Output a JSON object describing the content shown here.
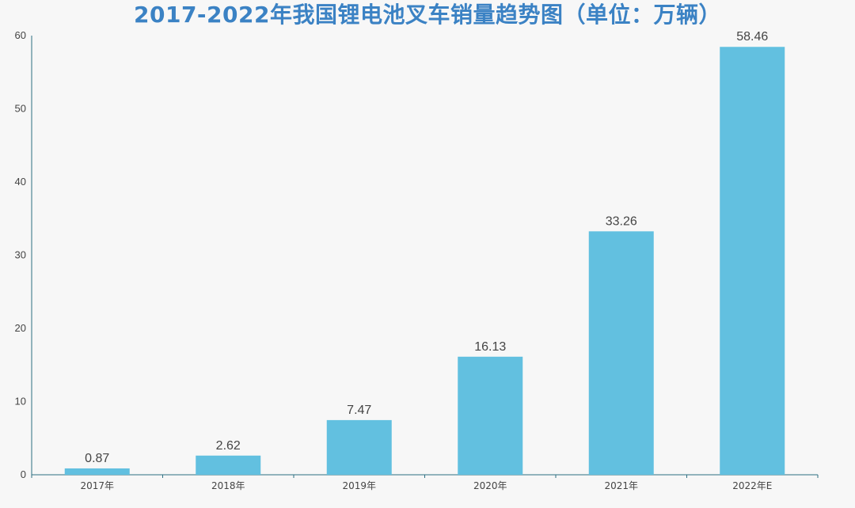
{
  "colors": {
    "bar": "#62c0e0",
    "axis": "#2e6f82",
    "title": "#3b82c4",
    "text": "#444444",
    "background": "#f7f7f7"
  },
  "chart_data": {
    "type": "bar",
    "title": "2017-2022年我国锂电池叉车销量趋势图（单位：万辆）",
    "xlabel": "",
    "ylabel": "",
    "categories": [
      "2017年",
      "2018年",
      "2019年",
      "2020年",
      "2021年",
      "2022年E"
    ],
    "values": [
      0.87,
      2.62,
      7.47,
      16.13,
      33.26,
      58.46
    ],
    "value_labels": [
      "0.87",
      "2.62",
      "7.47",
      "16.13",
      "33.26",
      "58.46"
    ],
    "ylim": [
      0,
      60
    ],
    "yticks": [
      0,
      10,
      20,
      30,
      40,
      50,
      60
    ],
    "grid": false,
    "legend": "none"
  }
}
